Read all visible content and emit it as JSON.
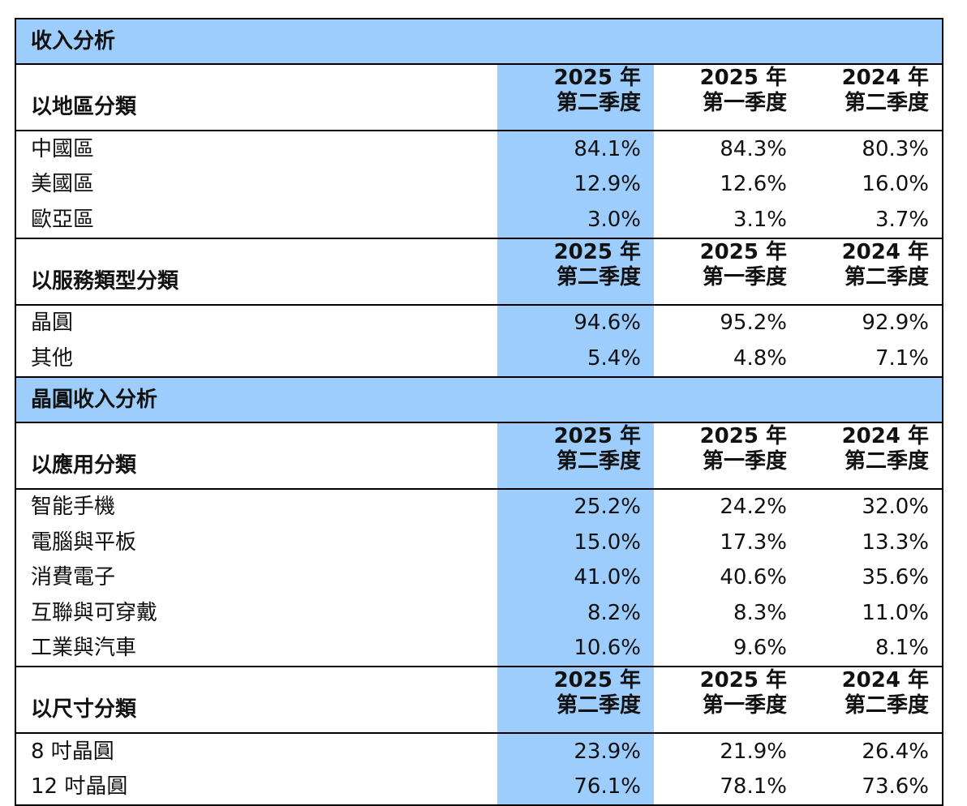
{
  "colors": {
    "highlight": "#9ccdfd",
    "text": "#111111",
    "border": "#000000"
  },
  "section1": {
    "title": "收入分析"
  },
  "geo": {
    "label": "以地區分類",
    "col_years": [
      "2025 年",
      "2025 年",
      "2024 年"
    ],
    "col_quarters": [
      "第二季度",
      "第一季度",
      "第二季度"
    ],
    "rows": [
      {
        "name": "中國區",
        "v": [
          "84.1%",
          "84.3%",
          "80.3%"
        ]
      },
      {
        "name": "美國區",
        "v": [
          "12.9%",
          "12.6%",
          "16.0%"
        ]
      },
      {
        "name": "歐亞區",
        "v": [
          "3.0%",
          "3.1%",
          "3.7%"
        ]
      }
    ]
  },
  "service": {
    "label": "以服務類型分類",
    "col_years": [
      "2025 年",
      "2025 年",
      "2024 年"
    ],
    "col_quarters": [
      "第二季度",
      "第一季度",
      "第二季度"
    ],
    "rows": [
      {
        "name": "晶圓",
        "v": [
          "94.6%",
          "95.2%",
          "92.9%"
        ]
      },
      {
        "name": "其他",
        "v": [
          "5.4%",
          "4.8%",
          "7.1%"
        ]
      }
    ]
  },
  "section2": {
    "title": "晶圓收入分析"
  },
  "application": {
    "label": "以應用分類",
    "col_years": [
      "2025 年",
      "2025 年",
      "2024 年"
    ],
    "col_quarters": [
      "第二季度",
      "第一季度",
      "第二季度"
    ],
    "rows": [
      {
        "name": "智能手機",
        "v": [
          "25.2%",
          "24.2%",
          "32.0%"
        ]
      },
      {
        "name": "電腦與平板",
        "v": [
          "15.0%",
          "17.3%",
          "13.3%"
        ]
      },
      {
        "name": "消費電子",
        "v": [
          "41.0%",
          "40.6%",
          "35.6%"
        ]
      },
      {
        "name": "互聯與可穿戴",
        "v": [
          "8.2%",
          "8.3%",
          "11.0%"
        ]
      },
      {
        "name": "工業與汽車",
        "v": [
          "10.6%",
          "9.6%",
          "8.1%"
        ]
      }
    ]
  },
  "size": {
    "label": "以尺寸分類",
    "col_years": [
      "2025 年",
      "2025 年",
      "2024 年"
    ],
    "col_quarters": [
      "第二季度",
      "第一季度",
      "第二季度"
    ],
    "rows": [
      {
        "name": "8 吋晶圓",
        "v": [
          "23.9%",
          "21.9%",
          "26.4%"
        ]
      },
      {
        "name": "12 吋晶圓",
        "v": [
          "76.1%",
          "78.1%",
          "73.6%"
        ]
      }
    ]
  }
}
